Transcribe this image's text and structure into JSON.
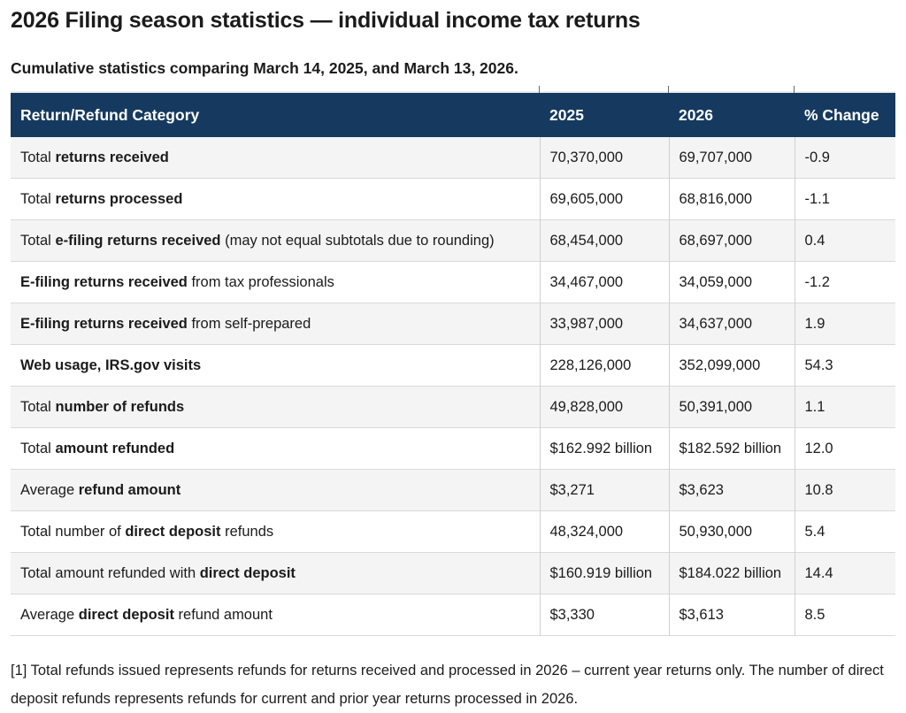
{
  "page": {
    "title": "2026 Filing season statistics — individual income tax returns",
    "subtitle": "Cumulative statistics comparing March 14, 2025, and March 13, 2026.",
    "footnote": "[1] Total refunds issued represents refunds for returns received and processed in 2026 – current year returns only. The number of direct deposit refunds represents refunds for current and prior year returns processed in 2026."
  },
  "colors": {
    "header_bg": "#163a5f",
    "header_text": "#ffffff",
    "stripe_row_bg": "#f4f4f4",
    "plain_row_bg": "#ffffff",
    "border": "#d0d0d0",
    "body_text": "#1b1b1b"
  },
  "table": {
    "columns": [
      "Return/Refund Category",
      "2025",
      "2026",
      "% Change"
    ],
    "rows": [
      {
        "label": [
          {
            "text": "Total ",
            "bold": false
          },
          {
            "text": "returns received",
            "bold": true
          }
        ],
        "y2025": "70,370,000",
        "y2026": "69,707,000",
        "change": "-0.9"
      },
      {
        "label": [
          {
            "text": "Total ",
            "bold": false
          },
          {
            "text": "returns processed",
            "bold": true
          }
        ],
        "y2025": "69,605,000",
        "y2026": "68,816,000",
        "change": "-1.1"
      },
      {
        "label": [
          {
            "text": "Total ",
            "bold": false
          },
          {
            "text": "e-filing returns received",
            "bold": true
          },
          {
            "text": " (may not equal subtotals due to rounding)",
            "bold": false
          }
        ],
        "y2025": "68,454,000",
        "y2026": "68,697,000",
        "change": "0.4"
      },
      {
        "label": [
          {
            "text": "E-filing returns received",
            "bold": true
          },
          {
            "text": " from tax professionals",
            "bold": false
          }
        ],
        "y2025": "34,467,000",
        "y2026": "34,059,000",
        "change": "-1.2"
      },
      {
        "label": [
          {
            "text": "E-filing returns received",
            "bold": true
          },
          {
            "text": " from self-prepared",
            "bold": false
          }
        ],
        "y2025": "33,987,000",
        "y2026": "34,637,000",
        "change": "1.9"
      },
      {
        "label": [
          {
            "text": "Web usage, IRS.gov visits",
            "bold": true
          }
        ],
        "y2025": "228,126,000",
        "y2026": "352,099,000",
        "change": "54.3"
      },
      {
        "label": [
          {
            "text": "Total ",
            "bold": false
          },
          {
            "text": "number of refunds",
            "bold": true
          }
        ],
        "y2025": "49,828,000",
        "y2026": "50,391,000",
        "change": "1.1"
      },
      {
        "label": [
          {
            "text": "Total ",
            "bold": false
          },
          {
            "text": "amount refunded",
            "bold": true
          }
        ],
        "y2025": "$162.992 billion",
        "y2026": "$182.592 billion",
        "change": "12.0"
      },
      {
        "label": [
          {
            "text": "Average ",
            "bold": false
          },
          {
            "text": "refund amount",
            "bold": true
          }
        ],
        "y2025": "$3,271",
        "y2026": "$3,623",
        "change": "10.8"
      },
      {
        "label": [
          {
            "text": "Total number of ",
            "bold": false
          },
          {
            "text": "direct deposit",
            "bold": true
          },
          {
            "text": " refunds",
            "bold": false
          }
        ],
        "y2025": "48,324,000",
        "y2026": "50,930,000",
        "change": "5.4"
      },
      {
        "label": [
          {
            "text": "Total amount refunded with ",
            "bold": false
          },
          {
            "text": "direct deposit",
            "bold": true
          }
        ],
        "y2025": "$160.919 billion",
        "y2026": "$184.022 billion",
        "change": "14.4"
      },
      {
        "label": [
          {
            "text": "Average ",
            "bold": false
          },
          {
            "text": "direct deposit",
            "bold": true
          },
          {
            "text": " refund amount",
            "bold": false
          }
        ],
        "y2025": "$3,330",
        "y2026": "$3,613",
        "change": "8.5"
      }
    ]
  }
}
